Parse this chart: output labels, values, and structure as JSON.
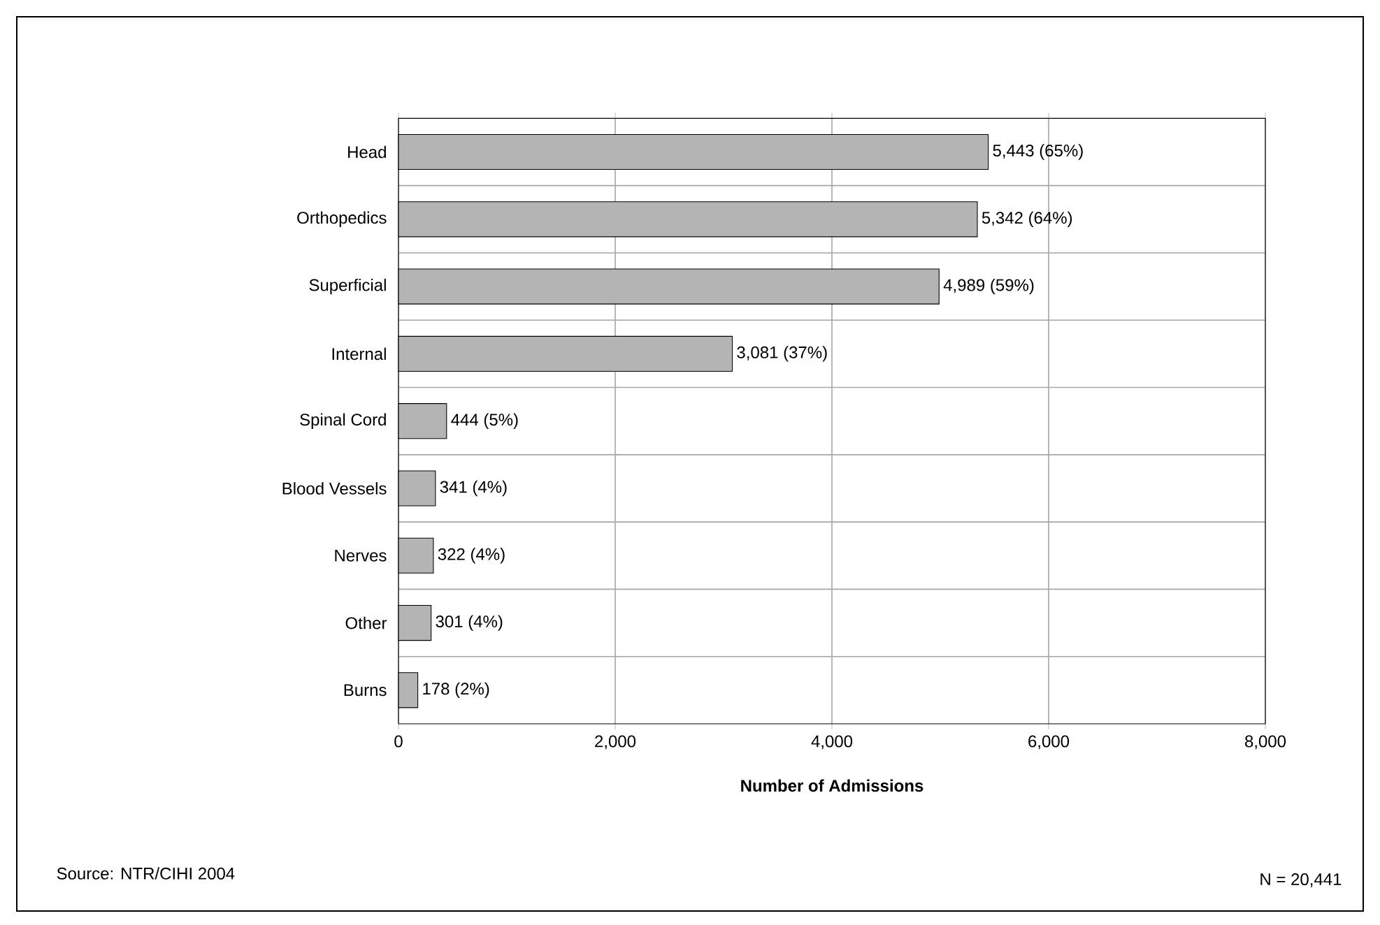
{
  "chart_data": {
    "type": "bar",
    "orientation": "horizontal",
    "categories": [
      "Head",
      "Orthopedics",
      "Superficial",
      "Internal",
      "Spinal Cord",
      "Blood Vessels",
      "Nerves",
      "Other",
      "Burns"
    ],
    "values": [
      5443,
      5342,
      4989,
      3081,
      444,
      341,
      322,
      301,
      178
    ],
    "value_labels": [
      "5,443 (65%)",
      "5,342 (64%)",
      "4,989 (59%)",
      "3,081 (37%)",
      "444 (5%)",
      "341 (4%)",
      "322 (4%)",
      "301 (4%)",
      "178 (2%)"
    ],
    "color": "#b4b4b4",
    "xlabel": "Number of Admissions",
    "xlim": [
      0,
      8000
    ],
    "xticks": [
      0,
      {
        "value": 2000,
        "label": "2,000"
      },
      {
        "value": 4000,
        "label": "4,000"
      },
      {
        "value": 6000,
        "label": "6,000"
      },
      {
        "value": 8000,
        "label": "8,000"
      }
    ],
    "grid": true,
    "annotations": [
      "Source: NTR/CIHI 2004",
      "N = 20,441"
    ]
  }
}
